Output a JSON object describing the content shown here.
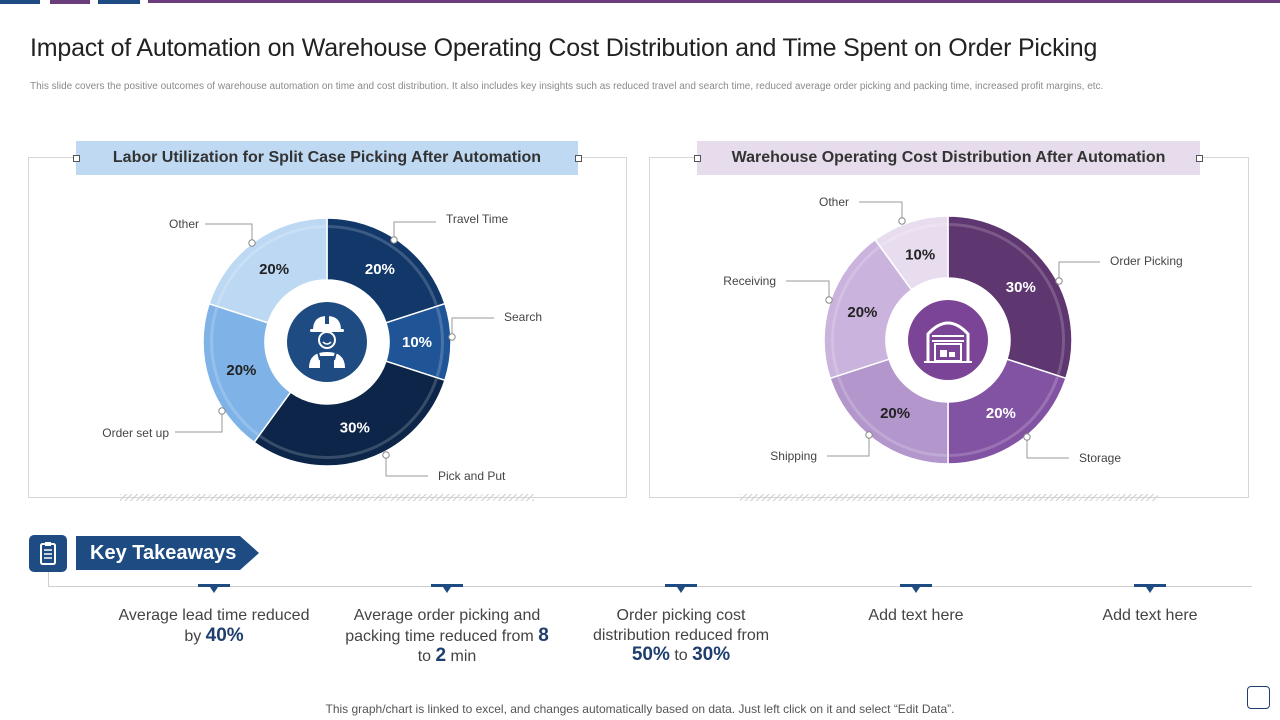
{
  "slide": {
    "title": "Impact of Automation on Warehouse Operating Cost Distribution and Time Spent on Order Picking",
    "subtitle": "This slide covers the positive outcomes of warehouse automation on time and cost distribution. It also includes key insights such as reduced travel and search time, reduced average order picking and packing time,   increased profit margins, etc.",
    "footer": "This graph/chart is linked to excel,  and changes automatically based on data. Just left click on it and select “Edit Data”."
  },
  "colors": {
    "accent_blue": "#1e4c82",
    "accent_purple": "#6b3d7d",
    "left_header_bg": "#bfd9f2",
    "right_header_bg": "#e6dcec"
  },
  "chart_data": [
    {
      "type": "pie",
      "variant": "donut",
      "title": "Labor Utilization for Split Case Picking After Automation",
      "center_icon": "worker-icon",
      "slices": [
        {
          "label": "Travel Time",
          "value": 20,
          "display": "20%",
          "color": "#12386a"
        },
        {
          "label": "Search",
          "value": 10,
          "display": "10%",
          "color": "#1f5597"
        },
        {
          "label": "Pick and Put",
          "value": 30,
          "display": "30%",
          "color": "#0c2548"
        },
        {
          "label": "Order set up",
          "value": 20,
          "display": "20%",
          "color": "#7fb3e8"
        },
        {
          "label": "Other",
          "value": 20,
          "display": "20%",
          "color": "#bcd8f3"
        }
      ]
    },
    {
      "type": "pie",
      "variant": "donut",
      "title": "Warehouse Operating Cost Distribution After Automation",
      "center_icon": "warehouse-icon",
      "slices": [
        {
          "label": "Order Picking",
          "value": 30,
          "display": "30%",
          "color": "#5e3670"
        },
        {
          "label": "Storage",
          "value": 20,
          "display": "20%",
          "color": "#8353a3"
        },
        {
          "label": "Shipping",
          "value": 20,
          "display": "20%",
          "color": "#b396cc"
        },
        {
          "label": "Receiving",
          "value": 20,
          "display": "20%",
          "color": "#cab3dd"
        },
        {
          "label": "Other",
          "value": 10,
          "display": "10%",
          "color": "#e8dcef"
        }
      ]
    }
  ],
  "key_takeaways": {
    "heading": "Key Takeaways",
    "items": [
      {
        "pre": "Average lead time reduced by ",
        "b1": "40%",
        "mid": "",
        "b2": "",
        "post": ""
      },
      {
        "pre": "Average order picking and packing time reduced from ",
        "b1": "8",
        "mid": " to ",
        "b2": "2",
        "post": " min"
      },
      {
        "pre": "Order picking cost distribution reduced from ",
        "b1": "50%",
        "mid": " to ",
        "b2": "30%",
        "post": ""
      },
      {
        "pre": "Add text here",
        "b1": "",
        "mid": "",
        "b2": "",
        "post": ""
      },
      {
        "pre": "Add text here",
        "b1": "",
        "mid": "",
        "b2": "",
        "post": ""
      }
    ]
  }
}
